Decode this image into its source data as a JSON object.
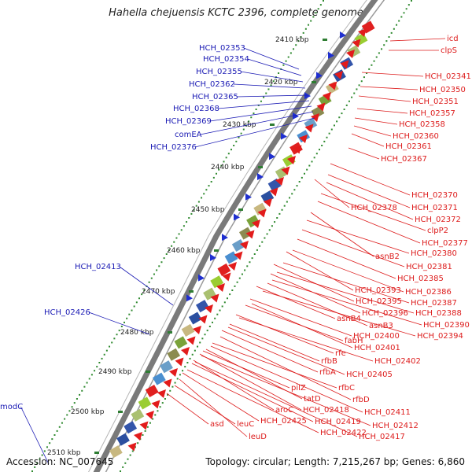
{
  "title": "Hahella chejuensis KCTC 2396, complete genome",
  "footer": {
    "accession": "Accession: NC_007645",
    "topology": "Topology: circular; Length: 7,215,267 bp; Genes: 6,860"
  },
  "colors": {
    "forward_label": "#1a1ab4",
    "reverse_label": "#dd1c1c",
    "backbone": "#666666",
    "gc_dots": "#2f8a2f",
    "tick": "#2e7d32"
  },
  "kbp_ticks": [
    "2410 kbp",
    "2420 kbp",
    "2430 kbp",
    "2440 kbp",
    "2450 kbp",
    "2460 kbp",
    "2470 kbp",
    "2480 kbp",
    "2490 kbp",
    "2500 kbp",
    "2510 kbp"
  ],
  "forward_genes": [
    "HCH_02353",
    "HCH_02354",
    "HCH_02355",
    "HCH_02362",
    "HCH_02365",
    "HCH_02368",
    "HCH_02369",
    "comEA",
    "HCH_02376",
    "HCH_02413",
    "HCH_02426",
    "modC"
  ],
  "reverse_genes": [
    "icd",
    "clpS",
    "HCH_02341",
    "HCH_02350",
    "HCH_02351",
    "HCH_02357",
    "HCH_02358",
    "HCH_02360",
    "HCH_02361",
    "HCH_02367",
    "HCH_02370",
    "HCH_02378",
    "HCH_02371",
    "HCH_02372",
    "clpP2",
    "HCH_02377",
    "asnB2",
    "HCH_02380",
    "HCH_02381",
    "HCH_02385",
    "HCH_02393",
    "HCH_02386",
    "HCH_02395",
    "HCH_02387",
    "HCH_02396",
    "HCH_02388",
    "asnB4",
    "asnB3",
    "HCH_02390",
    "HCH_02394",
    "HCH_02400",
    "fabH",
    "HCH_02401",
    "rfe",
    "rfbB",
    "HCH_02402",
    "rfbA",
    "HCH_02405",
    "rfbC",
    "pilZ",
    "tatD",
    "rfbD",
    "aroC",
    "HCH_02418",
    "HCH_02411",
    "HCH_02425",
    "HCH_02419",
    "HCH_02412",
    "asd",
    "leuC",
    "HCH_02422",
    "HCH_02417",
    "leuD"
  ]
}
